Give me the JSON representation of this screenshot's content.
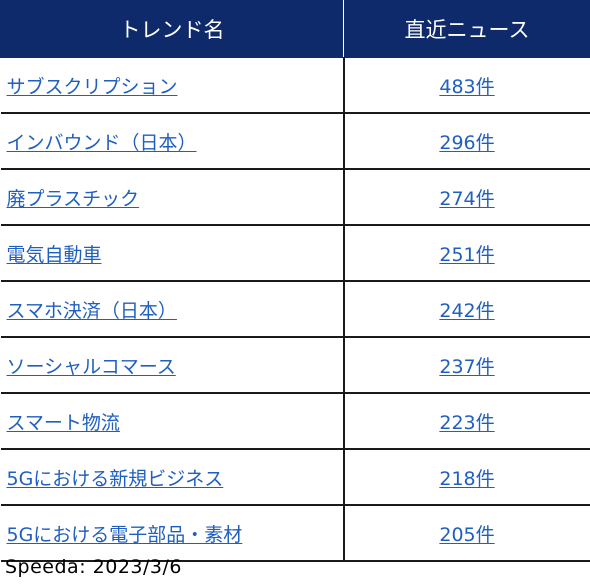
{
  "table": {
    "headers": [
      "トレンド名",
      "直近ニュース"
    ],
    "rows": [
      {
        "trend": "サブスクリプション",
        "news": "483件"
      },
      {
        "trend": "インバウンド（日本）",
        "news": "296件"
      },
      {
        "trend": "廃プラスチック",
        "news": "274件"
      },
      {
        "trend": "電気自動車",
        "news": "251件"
      },
      {
        "trend": "スマホ決済（日本）",
        "news": "242件"
      },
      {
        "trend": "ソーシャルコマース",
        "news": "237件"
      },
      {
        "trend": "スマート物流",
        "news": "223件"
      },
      {
        "trend": "5Gにおける新規ビジネス",
        "news": "218件"
      },
      {
        "trend": "5Gにおける電子部品・素材",
        "news": "205件"
      }
    ]
  },
  "footer": {
    "source": "Speeda:  2023/3/6"
  },
  "colors": {
    "header_bg": "#0f2a6b",
    "link": "#1f5fbf"
  }
}
